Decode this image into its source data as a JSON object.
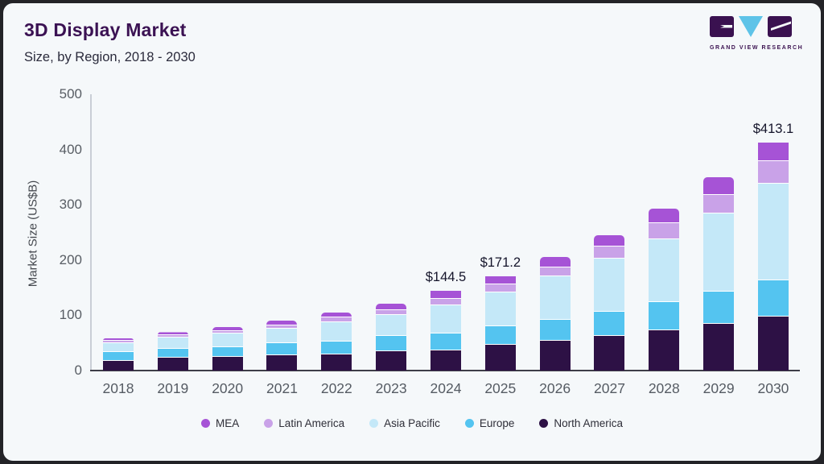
{
  "header": {
    "title": "3D Display Market",
    "subtitle": "Size, by Region, 2018 - 2030"
  },
  "logo": {
    "text": "GRAND VIEW RESEARCH",
    "dark_color": "#3a1150",
    "light_color": "#5ec3e8"
  },
  "chart_data": {
    "type": "bar",
    "stacked": true,
    "title": "3D Display Market",
    "subtitle": "Size, by Region, 2018 - 2030",
    "ylabel": "Market Size (US$B)",
    "ylim": [
      0,
      500
    ],
    "yticks": [
      0,
      100,
      200,
      300,
      400,
      500
    ],
    "grid": false,
    "legend_position": "bottom",
    "categories": [
      "2018",
      "2019",
      "2020",
      "2021",
      "2022",
      "2023",
      "2024",
      "2025",
      "2026",
      "2027",
      "2028",
      "2029",
      "2030"
    ],
    "series": [
      {
        "name": "North America",
        "color": "#2d1145",
        "values": [
          18,
          23,
          25,
          27.5,
          29,
          35,
          37,
          46,
          54.5,
          62,
          73,
          84.5,
          97.5
        ]
      },
      {
        "name": "Europe",
        "color": "#54c4f0",
        "values": [
          16,
          16,
          17,
          22.5,
          23,
          27,
          30,
          34.5,
          37.5,
          44,
          51.5,
          59,
          66
        ]
      },
      {
        "name": "Asia Pacific",
        "color": "#c4e8f8",
        "values": [
          16,
          20.5,
          25,
          25.5,
          35.5,
          39,
          51.5,
          61,
          78,
          96.5,
          113.5,
          141.5,
          174.5
        ]
      },
      {
        "name": "Latin America",
        "color": "#c9a2e8",
        "values": [
          3.5,
          4,
          5,
          6,
          8.5,
          8.5,
          12,
          14,
          17,
          22,
          29,
          32.5,
          41
        ]
      },
      {
        "name": "MEA",
        "color": "#a653d6",
        "values": [
          5,
          6,
          7,
          8.5,
          9.5,
          11,
          14,
          15.7,
          18.5,
          20,
          25.5,
          32,
          34.1
        ]
      }
    ],
    "value_labels": {
      "2024": "$144.5",
      "2025": "$171.2",
      "2030": "$413.1"
    },
    "legend": [
      {
        "label": "MEA",
        "color": "#a653d6"
      },
      {
        "label": "Latin America",
        "color": "#c9a2e8"
      },
      {
        "label": "Asia Pacific",
        "color": "#c4e8f8"
      },
      {
        "label": "Europe",
        "color": "#54c4f0"
      },
      {
        "label": "North America",
        "color": "#2d1145"
      }
    ]
  }
}
